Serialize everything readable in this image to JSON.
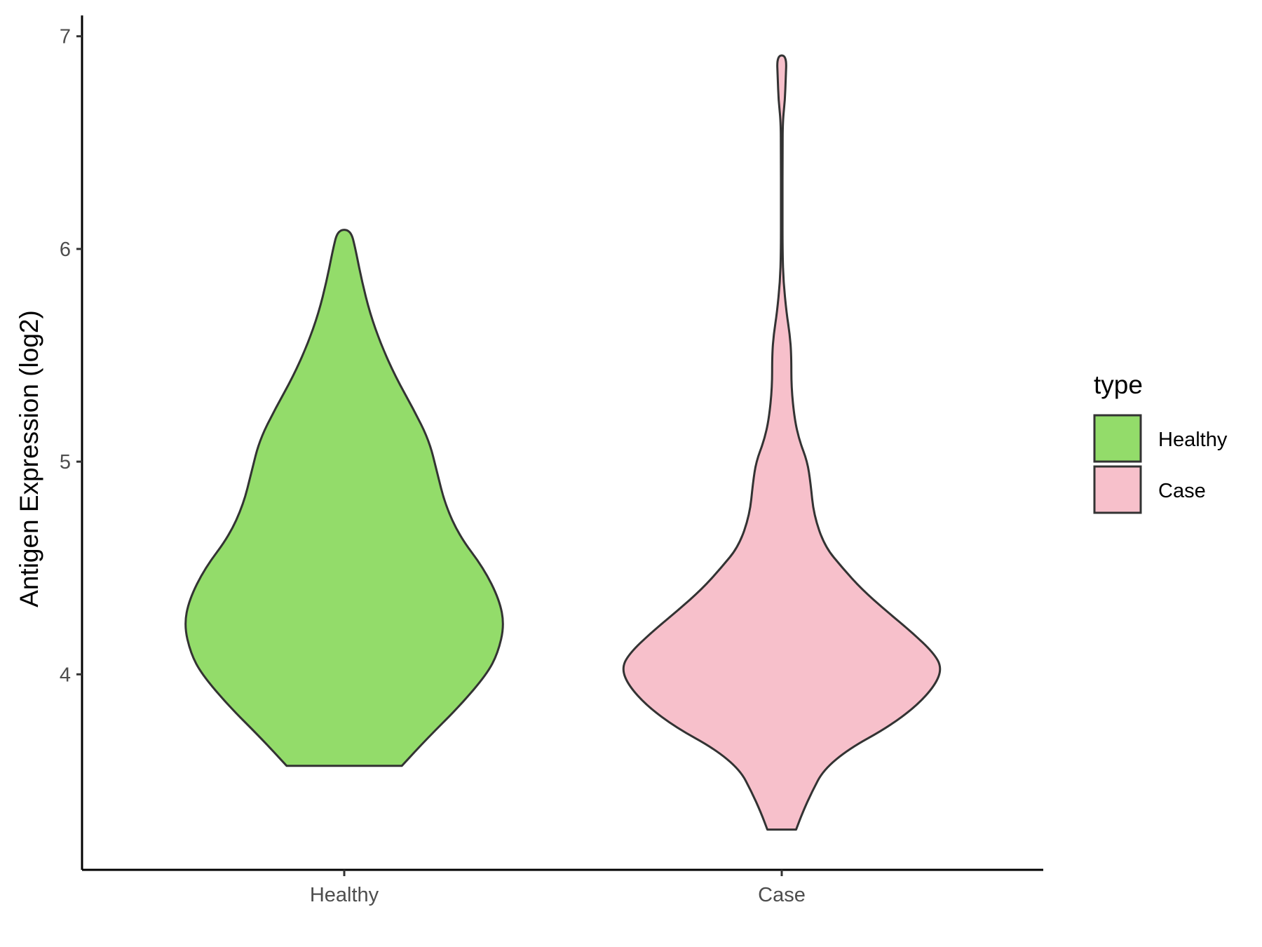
{
  "chart_data": {
    "type": "violin",
    "xlabel": "",
    "ylabel": "Antigen Expression (log2)",
    "ylim": [
      3.1,
      7.1
    ],
    "yticks": [
      4,
      5,
      6,
      7
    ],
    "categories": [
      "Healthy",
      "Case"
    ],
    "grid": false,
    "legend": {
      "title": "type",
      "placement": "right",
      "items": [
        {
          "label": "Healthy",
          "color": "#93DC6A"
        },
        {
          "label": "Case",
          "color": "#F7C0CB"
        }
      ]
    },
    "series": [
      {
        "name": "Healthy",
        "color": "#93DC6A",
        "min": 3.57,
        "max": 6.09,
        "density_profile": [
          [
            3.57,
            0.36
          ],
          [
            3.7,
            0.52
          ],
          [
            3.85,
            0.72
          ],
          [
            4.0,
            0.89
          ],
          [
            4.1,
            0.96
          ],
          [
            4.23,
            1.0
          ],
          [
            4.35,
            0.97
          ],
          [
            4.5,
            0.87
          ],
          [
            4.65,
            0.72
          ],
          [
            4.8,
            0.63
          ],
          [
            4.95,
            0.58
          ],
          [
            5.1,
            0.53
          ],
          [
            5.25,
            0.43
          ],
          [
            5.4,
            0.32
          ],
          [
            5.55,
            0.23
          ],
          [
            5.7,
            0.16
          ],
          [
            5.85,
            0.11
          ],
          [
            6.0,
            0.07
          ],
          [
            6.09,
            0.04
          ]
        ]
      },
      {
        "name": "Case",
        "color": "#F7C0CB",
        "min": 3.27,
        "max": 6.91,
        "density_profile": [
          [
            3.27,
            0.09
          ],
          [
            3.35,
            0.13
          ],
          [
            3.45,
            0.19
          ],
          [
            3.55,
            0.26
          ],
          [
            3.65,
            0.42
          ],
          [
            3.75,
            0.66
          ],
          [
            3.85,
            0.84
          ],
          [
            3.95,
            0.96
          ],
          [
            4.03,
            1.0
          ],
          [
            4.1,
            0.95
          ],
          [
            4.2,
            0.81
          ],
          [
            4.3,
            0.65
          ],
          [
            4.4,
            0.5
          ],
          [
            4.5,
            0.38
          ],
          [
            4.6,
            0.27
          ],
          [
            4.75,
            0.2
          ],
          [
            4.9,
            0.18
          ],
          [
            5.0,
            0.16
          ],
          [
            5.1,
            0.11
          ],
          [
            5.2,
            0.08
          ],
          [
            5.35,
            0.06
          ],
          [
            5.5,
            0.06
          ],
          [
            5.6,
            0.05
          ],
          [
            5.7,
            0.03
          ],
          [
            5.85,
            0.01
          ],
          [
            6.0,
            0.005
          ],
          [
            6.2,
            0.005
          ],
          [
            6.45,
            0.005
          ],
          [
            6.6,
            0.006
          ],
          [
            6.7,
            0.02
          ],
          [
            6.8,
            0.025
          ],
          [
            6.91,
            0.03
          ]
        ]
      }
    ]
  }
}
